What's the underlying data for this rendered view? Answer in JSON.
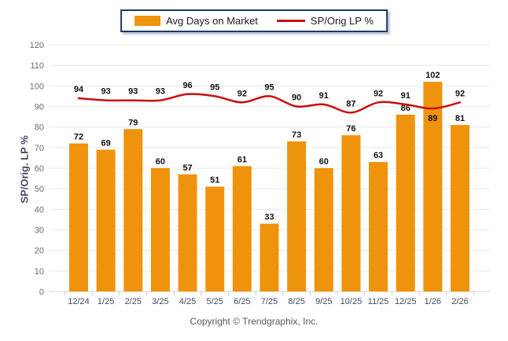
{
  "chart_data": {
    "type": "bar",
    "categories": [
      "12/24",
      "1/25",
      "2/25",
      "3/25",
      "4/25",
      "5/25",
      "6/25",
      "7/25",
      "8/25",
      "9/25",
      "10/25",
      "11/25",
      "12/25",
      "1/26",
      "2/26"
    ],
    "series": [
      {
        "name": "Avg Days on Market",
        "type": "bar",
        "color": "#F0930C",
        "values": [
          72,
          69,
          79,
          60,
          57,
          51,
          61,
          33,
          73,
          60,
          76,
          63,
          86,
          102,
          81
        ]
      },
      {
        "name": "SP/Orig LP %",
        "type": "line",
        "color": "#C90E0E",
        "values": [
          94,
          93,
          93,
          93,
          96,
          95,
          92,
          95,
          90,
          91,
          87,
          92,
          91,
          89,
          92
        ]
      }
    ],
    "title": "",
    "xlabel": "",
    "ylabel": "SP/Orig. LP %",
    "ylim": [
      0,
      120
    ],
    "ytick_step": 10,
    "grid": true,
    "legend_position": "top-center",
    "data_labels": true
  },
  "legend": {
    "items": [
      {
        "label": "Avg Days on Market",
        "type": "bar",
        "color": "#F0930C"
      },
      {
        "label": "SP/Orig LP %",
        "type": "line",
        "color": "#C90E0E"
      }
    ]
  },
  "axis": {
    "ylabel": "SP/Orig. LP %"
  },
  "footer": {
    "copyright": "Copyright © Trendgraphix, Inc."
  },
  "colors": {
    "bar": "#F0930C",
    "line": "#C90E0E",
    "grid": "#E8E8E8",
    "axis_line": "#D4D4D4",
    "tick_mark": "#C9C9C9",
    "ytick_text": "#6B6B72",
    "xtick_text": "#3F4B61",
    "data_label_text": "#111111",
    "legend_border": "#1F3864",
    "ylabel_text": "#3F4A5F",
    "footer_text": "#595959",
    "background": "#FFFFFF"
  }
}
